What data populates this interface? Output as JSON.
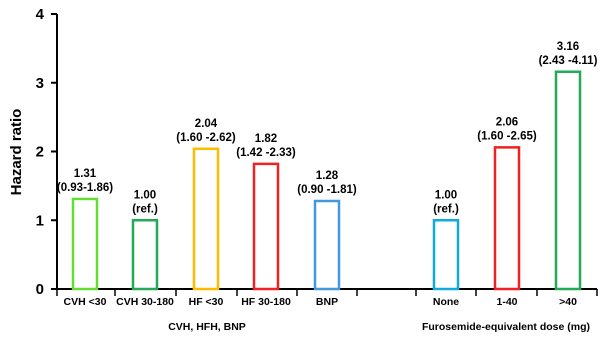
{
  "chart_data": {
    "type": "bar",
    "ylabel": "Hazard ratio",
    "ylim": [
      0,
      4
    ],
    "yticks": [
      "0",
      "1",
      "2",
      "3",
      "4"
    ],
    "grid": false,
    "groups": [
      {
        "label": "CVH, HFH, BNP",
        "categories": [
          "CVH <30",
          "CVH 30-180",
          "HF <30",
          "HF 30-180",
          "BNP"
        ],
        "values": [
          1.31,
          1.0,
          2.04,
          1.82,
          1.28
        ],
        "value_labels": [
          "1.31",
          "1.00",
          "2.04",
          "1.82",
          "1.28"
        ],
        "ci_labels": [
          "(0.93-1.86)",
          "(ref.)",
          "(1.60 -2.62)",
          "(1.42 -2.33)",
          "(0.90 -1.81)"
        ],
        "colors": [
          "#66dd33",
          "#22aa55",
          "#ffbb00",
          "#ee2222",
          "#4499dd"
        ]
      },
      {
        "label": "Furosemide-equivalent dose (mg)",
        "categories": [
          "None",
          "1-40",
          ">40"
        ],
        "values": [
          1.0,
          2.06,
          3.16
        ],
        "value_labels": [
          "1.00",
          "2.06",
          "3.16"
        ],
        "ci_labels": [
          "(ref.)",
          "(1.60 -2.65)",
          "(2.43 -4.11)"
        ],
        "colors": [
          "#11aadd",
          "#ee2222",
          "#22aa55"
        ]
      }
    ]
  }
}
